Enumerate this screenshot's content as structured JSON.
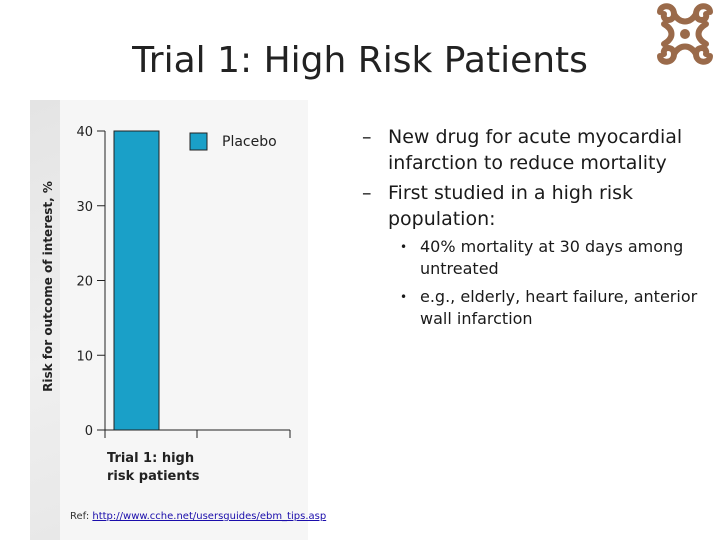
{
  "slide": {
    "title": "Trial 1: High Risk Patients"
  },
  "bullets": [
    {
      "text": "New drug for acute myocardial infarction to reduce mortality",
      "sub": []
    },
    {
      "text": "First studied in a high risk population:",
      "sub": [
        "40% mortality at 30 days among untreated",
        "e.g., elderly, heart failure, anterior wall infarction"
      ]
    }
  ],
  "reference": {
    "label": "Ref:",
    "url": "http://www.cche.net/usersguides/ebm_tips.asp"
  },
  "chart_data": {
    "type": "bar",
    "categories": [
      "Trial 1: high risk patients"
    ],
    "category_lines": [
      [
        "Trial 1: high",
        "risk patients"
      ]
    ],
    "series": [
      {
        "name": "Placebo",
        "values": [
          40
        ],
        "color": "#1aa0c8"
      }
    ],
    "ylabel": "Risk for outcome of interest, %",
    "xlabel": "",
    "ylim": [
      0,
      40
    ],
    "yticks": [
      0,
      10,
      20,
      30,
      40
    ],
    "legend": "top-right",
    "grid": false
  },
  "colors": {
    "bar": "#1aa0c8",
    "logo": "#9a6a4a"
  }
}
